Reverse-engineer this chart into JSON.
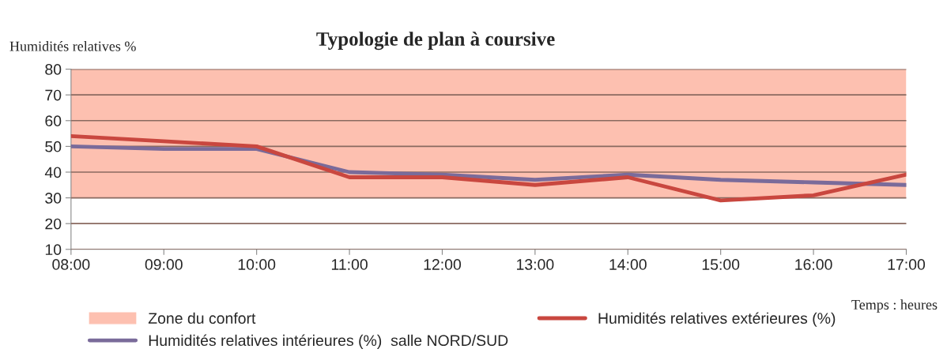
{
  "chart_data": {
    "type": "line",
    "title": "Typologie de plan à coursive",
    "ylabel": "Humidités relatives %",
    "xlabel": "Temps : heures",
    "x": [
      8,
      9,
      10,
      11,
      12,
      13,
      14,
      15,
      16,
      17
    ],
    "xlim": [
      8,
      17
    ],
    "xticks": [
      {
        "value": 8,
        "label": "08:00"
      },
      {
        "value": 9,
        "label": "09:00"
      },
      {
        "value": 10,
        "label": "10:00"
      },
      {
        "value": 11,
        "label": "11:00"
      },
      {
        "value": 12,
        "label": "12:00"
      },
      {
        "value": 13,
        "label": "13:00"
      },
      {
        "value": 14,
        "label": "14:00"
      },
      {
        "value": 15,
        "label": "15:00"
      },
      {
        "value": 16,
        "label": "16:00"
      },
      {
        "value": 17,
        "label": "17:00"
      }
    ],
    "ylim": [
      10,
      80
    ],
    "yticks": [
      10,
      20,
      30,
      40,
      50,
      60,
      70,
      80
    ],
    "grid": "y",
    "legend": "bottom",
    "series": [
      {
        "name": "Humidités relatives intérieures (%)  salle NORD/SUD",
        "color": "#7a6b9a",
        "values": [
          50,
          49,
          49,
          40,
          39,
          37,
          39,
          37,
          36,
          35
        ]
      },
      {
        "name": "Humidités relatives extérieures (%)",
        "color": "#c9473f",
        "values": [
          54,
          52,
          50,
          38,
          38,
          35,
          38,
          29,
          31,
          39
        ]
      }
    ],
    "bands": [
      {
        "axis": "y",
        "from": 30,
        "to": 80,
        "label": "Zone du confort",
        "color": "#fdc0b0"
      }
    ]
  }
}
